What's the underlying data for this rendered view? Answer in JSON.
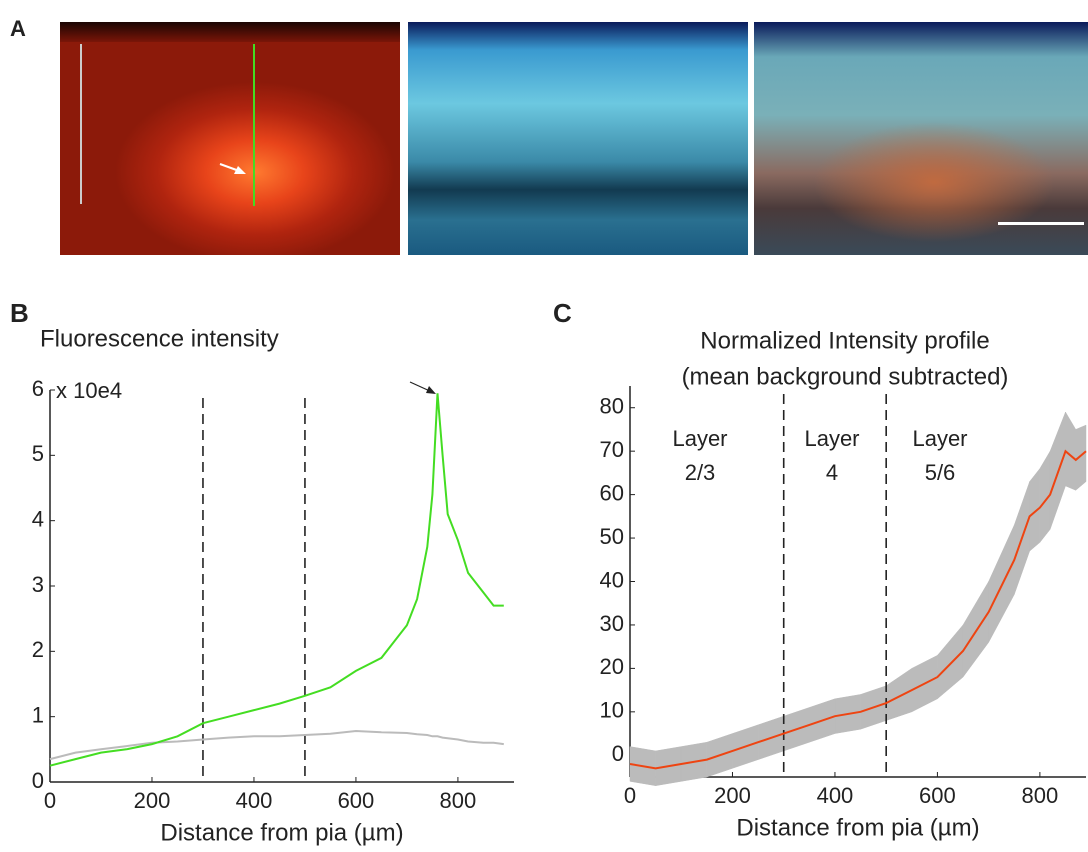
{
  "panel_labels": [
    "A",
    "B",
    "C"
  ],
  "chart_data": [
    {
      "type": "line",
      "title": "Fluorescence intensity",
      "y_multiplier": "x 10e4",
      "x_label": "Distance from pia (µm)",
      "x": [
        0,
        50,
        100,
        150,
        200,
        250,
        300,
        350,
        400,
        450,
        500,
        550,
        600,
        650,
        700,
        720,
        740,
        750,
        760,
        770,
        780,
        800,
        820,
        850,
        870,
        890
      ],
      "series": [
        {
          "color": "#44dd22",
          "values": [
            0.25,
            0.35,
            0.45,
            0.5,
            0.58,
            0.7,
            0.9,
            1.0,
            1.1,
            1.2,
            1.32,
            1.45,
            1.7,
            1.9,
            2.4,
            2.8,
            3.6,
            4.4,
            5.95,
            5.0,
            4.1,
            3.7,
            3.2,
            2.9,
            2.7,
            2.7
          ]
        },
        {
          "color": "#bbbbbb",
          "values": [
            0.35,
            0.45,
            0.5,
            0.55,
            0.6,
            0.62,
            0.65,
            0.68,
            0.7,
            0.7,
            0.72,
            0.74,
            0.78,
            0.76,
            0.75,
            0.73,
            0.72,
            0.7,
            0.7,
            0.68,
            0.67,
            0.65,
            0.62,
            0.6,
            0.6,
            0.58
          ]
        }
      ],
      "vlines": [
        300,
        500
      ],
      "xlim": [
        0,
        910
      ],
      "ylim": [
        0,
        6
      ],
      "xticks": [
        0,
        200,
        400,
        600,
        800
      ],
      "yticks": [
        0,
        1,
        2,
        3,
        4,
        5,
        6
      ]
    },
    {
      "type": "band_line",
      "title": [
        "Normalized Intensity profile",
        "(mean background subtracted)"
      ],
      "x_label": "Distance from pia (µm)",
      "x": [
        0,
        50,
        100,
        150,
        200,
        250,
        300,
        350,
        400,
        450,
        500,
        550,
        600,
        650,
        700,
        750,
        780,
        800,
        820,
        850,
        870,
        890
      ],
      "series": [
        {
          "color": "#ee4411",
          "values": [
            -2,
            -3,
            -2,
            -1,
            1,
            3,
            5,
            7,
            9,
            10,
            12,
            15,
            18,
            24,
            33,
            45,
            55,
            57,
            60,
            70,
            68,
            70
          ],
          "band_color": "#bbbbbb",
          "lower": [
            -6,
            -7,
            -6,
            -5,
            -3,
            -1,
            1,
            3,
            5,
            6,
            8,
            10,
            13,
            18,
            26,
            37,
            47,
            49,
            52,
            62,
            61,
            63
          ],
          "upper": [
            2,
            1,
            2,
            3,
            5,
            7,
            9,
            11,
            13,
            14,
            16,
            20,
            23,
            30,
            40,
            53,
            63,
            66,
            70,
            79,
            75,
            76
          ]
        }
      ],
      "vlines": [
        300,
        500
      ],
      "annotations": [
        [
          "Layer",
          "2/3"
        ],
        [
          "Layer",
          "4"
        ],
        [
          "Layer",
          "5/6"
        ]
      ],
      "xlim": [
        0,
        890
      ],
      "ylim": [
        -5,
        85
      ],
      "xticks": [
        0,
        200,
        400,
        600,
        800
      ],
      "yticks": [
        0,
        10,
        20,
        30,
        40,
        50,
        60,
        70,
        80
      ]
    }
  ]
}
